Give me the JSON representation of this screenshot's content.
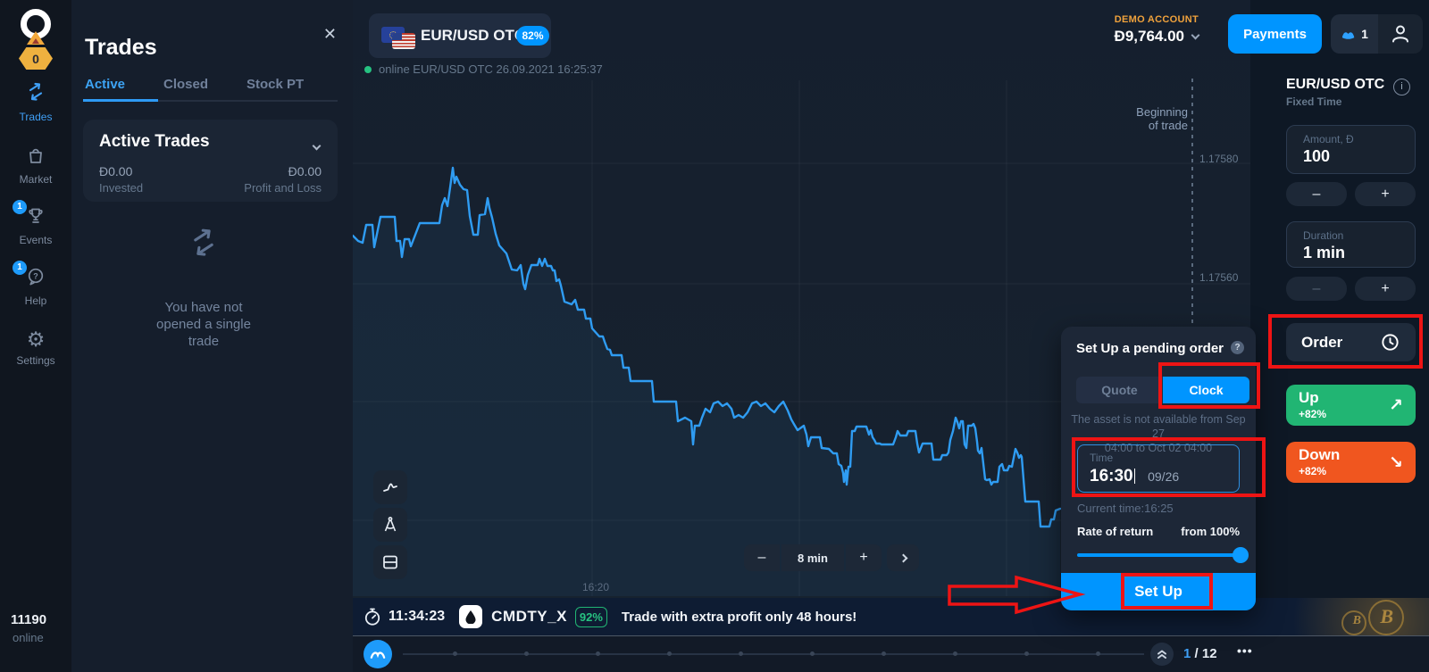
{
  "glyphs": {
    "close": "✕",
    "gear": "⚙",
    "up_arrow": "↗",
    "down_arrow": "↘",
    "minus": "–",
    "plus": "+",
    "ellipsis": "•••",
    "question": "?",
    "info": "i"
  },
  "rail": {
    "badge": "0",
    "items": [
      {
        "label": "Trades"
      },
      {
        "label": "Market"
      },
      {
        "label": "Events",
        "badge": "1"
      },
      {
        "label": "Help",
        "badge": "1"
      },
      {
        "label": "Settings"
      }
    ],
    "online_count": "11190",
    "online_label": "online"
  },
  "trades_panel": {
    "title": "Trades",
    "tabs": [
      "Active",
      "Closed",
      "Stock PT"
    ],
    "card_title": "Active Trades",
    "invested_value": "Đ0.00",
    "invested_label": "Invested",
    "pnl_value": "Đ0.00",
    "pnl_label": "Profit and Loss",
    "empty_text": "You have not opened a single trade"
  },
  "asset_bar": {
    "name": "EUR/USD OTC",
    "payout": "82%",
    "status": "online EUR/USD OTC 26.09.2021 16:25:37"
  },
  "account": {
    "type": "DEMO ACCOUNT",
    "balance": "Đ9,764.00",
    "payments": "Payments",
    "notifications": "1"
  },
  "chart": {
    "price_labels": [
      "1.17580",
      "1.17560"
    ],
    "time_label": "16:20",
    "beginning_line1": "Beginning",
    "beginning_line2": "of trade",
    "timeframe": "8 min",
    "line_points": "395,264 401,270 406,272 410,252 417,252 419,277 426,243 442,243 444,270 448,270 450,288 453,268 458,268 460,276 470,250 492,250 495,230 498,222 501,231 504,210 507,188 509,205 511,198 515,207 519,212 523,213 526,242 530,263 535,263 537,241 543,240 546,222 548,233 551,244 555,262 559,275 567,284 573,302 579,303 583,297 586,318 588,324 591,308 595,297 602,297 604,290 607,298 610,290 613,298 617,298 619,303 621,303 623,315 626,313 628,320 632,338 640,341 644,336 647,347 654,347 656,357 661,357 663,368 671,377 675,377 677,383 680,391 683,392 685,398 696,398 698,412 704,412 706,427 730,427 732,450 757,450 759,472 767,468 774,472 776,498 778,477 783,477 786,468 790,458 795,462 799,452 804,450 809,455 814,452 819,458 822,468 827,465 832,468 837,462 842,452 847,450 852,455 857,452 862,458 867,462 872,455 877,450 882,460 886,470 890,477 893,482 900,477 903,487 905,500 908,490 918,490 920,502 928,503 933,508 937,508 939,520 942,522 944,530 945,540 947,527 948,543 950,523 952,523 954,483 957,483 959,478 970,478 973,487 975,482 977,490 979,493 981,497 985,497 987,498 1000,498 1003,490 1005,483 1008,488 1015,488 1017,483 1025,483 1027,497 1029,507 1033,497 1043,497 1045,515 1053,515 1055,510 1060,510 1062,507 1064,493 1067,483 1070,468 1072,473 1074,480 1076,472 1078,472 1080,498 1082,502 1084,477 1088,477 1090,475 1092,480 1094,495 1095,505 1097,508 1099,502 1103,537 1105,538 1108,537 1110,543 1112,540 1117,540 1119,523 1122,520 1124,527 1128,527 1130,522 1133,523 1137,503 1139,507 1141,513 1143,510 1144,512 1148,562 1163,562 1165,590 1175,590 1177,582 1180,582 1182,572 1187,570"
  },
  "popup": {
    "title": "Set Up a pending order",
    "tab_quote": "Quote",
    "tab_clock": "Clock",
    "warning_line1": "The asset is not available from Sep 27",
    "warning_line2": "04:00 to Oct 02 04:00",
    "time_label": "Time",
    "time_value": "16:30",
    "date_value": "09/26",
    "current_time": "Current time:16:25",
    "rate_label": "Rate of return",
    "rate_value": "from 100%",
    "submit": "Set Up"
  },
  "trade_controls": {
    "asset": "EUR/USD OTC",
    "mode": "Fixed Time",
    "amount_label": "Amount, Đ",
    "amount_value": "100",
    "duration_label": "Duration",
    "duration_value": "1 min",
    "order": "Order",
    "up": "Up",
    "up_pct": "+82%",
    "down": "Down",
    "down_pct": "+82%"
  },
  "promo": {
    "time": "11:34:23",
    "ticker": "CMDTY_X",
    "payout": "92%",
    "text": "Trade with extra profit only 48 hours!"
  },
  "timeline": {
    "page_current": "1",
    "page_total": "/ 12"
  }
}
